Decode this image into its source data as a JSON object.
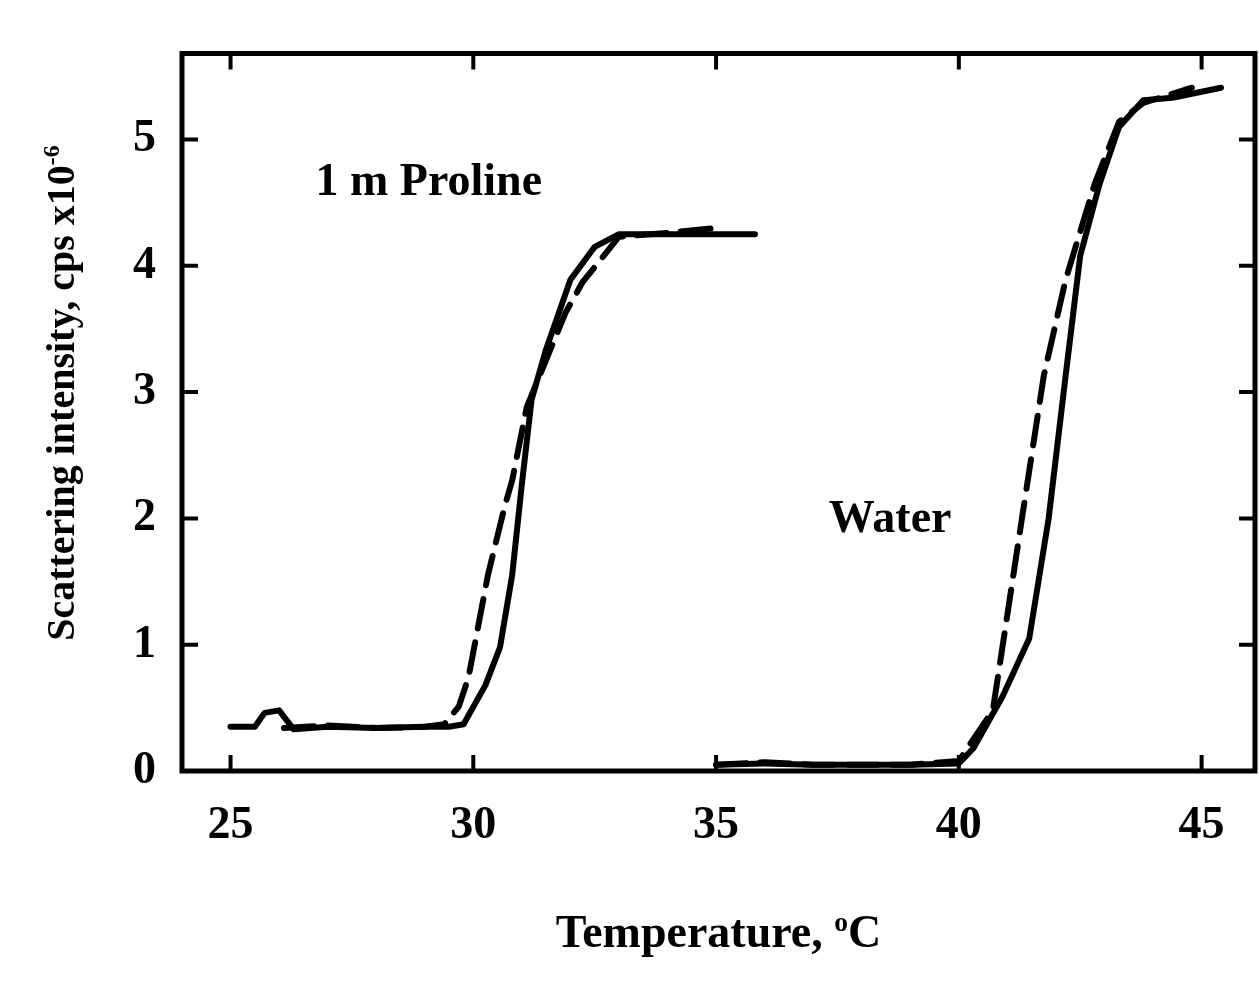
{
  "chart_data": {
    "type": "line",
    "xlabel": "Temperature, $^{o}$C",
    "ylabel": "Scattering intensity, cps x10$^{-6}$",
    "xlim": [
      24,
      46.1
    ],
    "ylim": [
      0,
      5.68
    ],
    "xticks": [
      25,
      30,
      35,
      40,
      45
    ],
    "yticks": [
      0,
      1,
      2,
      3,
      4,
      5
    ],
    "grid": false,
    "legend": false,
    "marker": "none",
    "annotations": [
      "1 m Proline",
      "Water"
    ],
    "series": [
      {
        "color": "#000000",
        "line_style": "solid",
        "x": [
          25.0,
          25.5,
          25.7,
          26.0,
          26.3,
          27,
          28,
          29,
          29.5,
          29.8,
          30.25,
          30.55,
          30.8,
          31.0,
          31.2,
          31.5,
          32.0,
          32.5,
          33.0,
          34,
          35,
          35.8
        ],
        "values": [
          0.35,
          0.35,
          0.46,
          0.48,
          0.33,
          0.35,
          0.34,
          0.35,
          0.35,
          0.37,
          0.68,
          0.98,
          1.55,
          2.27,
          2.94,
          3.34,
          3.89,
          4.15,
          4.25,
          4.25,
          4.25,
          4.25
        ]
      },
      {
        "color": "#000000",
        "line_style": "dashed",
        "x": [
          26.1,
          27,
          28,
          29,
          29.4,
          29.7,
          29.9,
          30.3,
          30.65,
          30.8,
          31.1,
          31.9,
          32.25,
          33.0,
          34,
          35.0
        ],
        "values": [
          0.34,
          0.36,
          0.34,
          0.35,
          0.37,
          0.51,
          0.74,
          1.55,
          2.1,
          2.3,
          2.88,
          3.63,
          3.87,
          4.23,
          4.26,
          4.3
        ]
      },
      {
        "color": "#000000",
        "line_style": "solid",
        "x": [
          35.0,
          36,
          37,
          38,
          39,
          40.0,
          40.3,
          40.9,
          41.45,
          41.85,
          42.2,
          42.5,
          42.9,
          43.3,
          43.8,
          44.4,
          45.4
        ],
        "values": [
          0.05,
          0.06,
          0.05,
          0.05,
          0.05,
          0.06,
          0.18,
          0.59,
          1.05,
          2.0,
          3.13,
          4.08,
          4.65,
          5.1,
          5.31,
          5.33,
          5.41
        ]
      },
      {
        "color": "#000000",
        "line_style": "dashed",
        "x": [
          35.0,
          36,
          37,
          38,
          39,
          40.0,
          40.7,
          41.0,
          41.3,
          41.75,
          42.2,
          42.8,
          43.3,
          43.8,
          44.8
        ],
        "values": [
          0.05,
          0.07,
          0.05,
          0.05,
          0.05,
          0.08,
          0.48,
          1.24,
          2.0,
          3.13,
          3.89,
          4.65,
          5.14,
          5.29,
          5.41
        ]
      }
    ]
  }
}
